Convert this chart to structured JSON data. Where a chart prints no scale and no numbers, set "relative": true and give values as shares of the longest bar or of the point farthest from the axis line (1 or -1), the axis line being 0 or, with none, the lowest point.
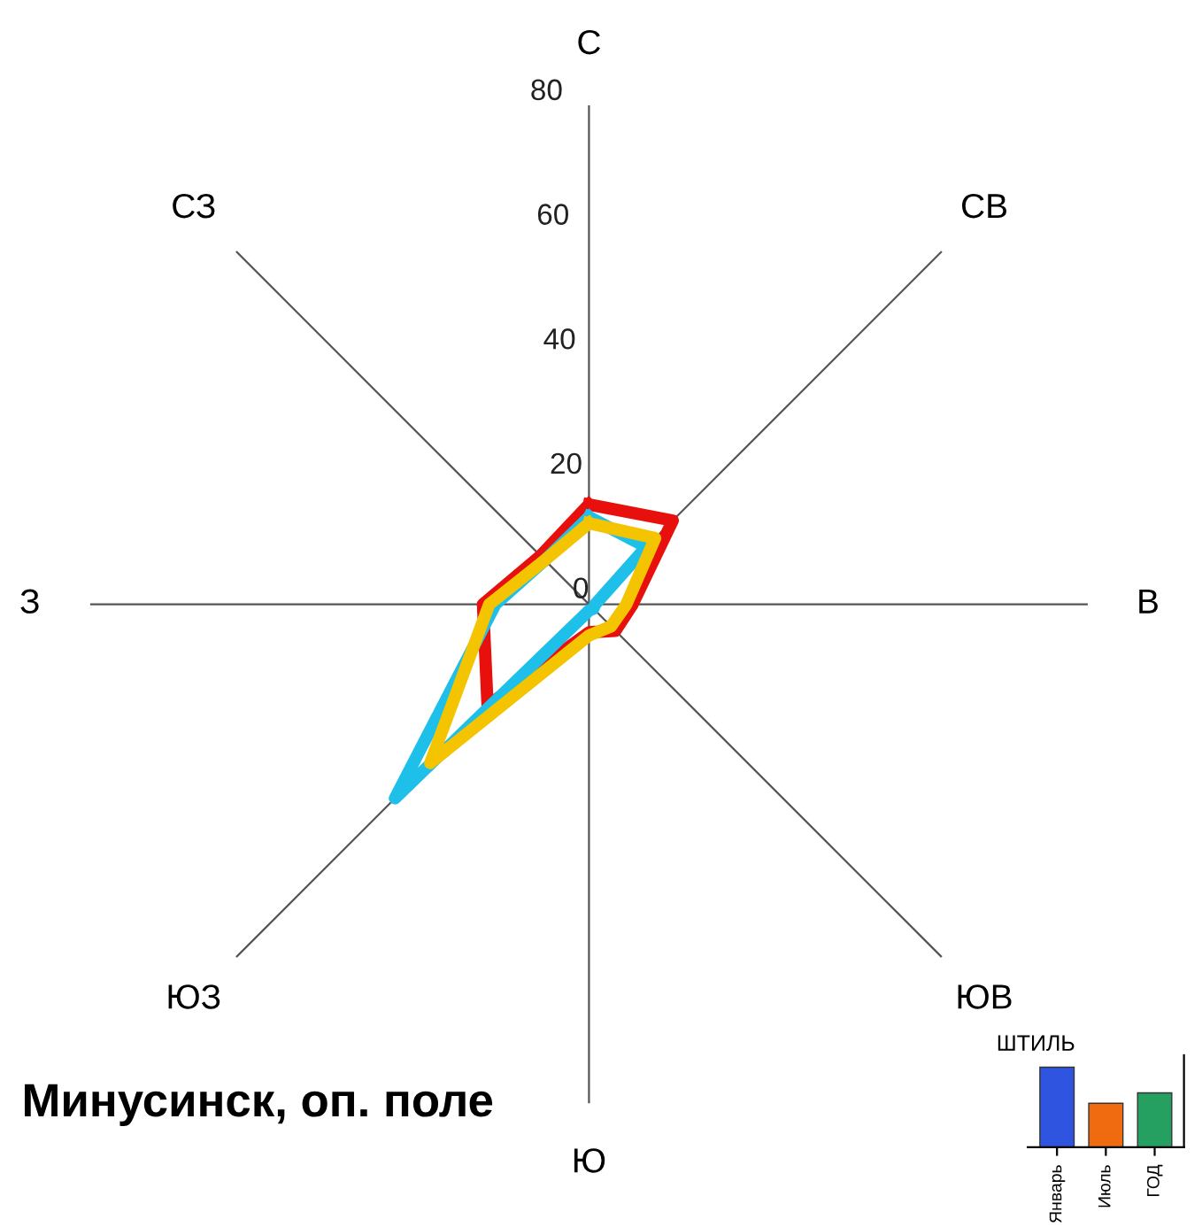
{
  "chart_data": [
    {
      "type": "radar",
      "title": "Минусинск, оп. поле",
      "categories": [
        "С",
        "СВ",
        "В",
        "ЮВ",
        "Ю",
        "ЮЗ",
        "З",
        "СЗ"
      ],
      "ylim": [
        0,
        80
      ],
      "yticks": [
        0,
        20,
        40,
        60,
        80
      ],
      "marker": "none",
      "series": [
        {
          "color": "#e8100c",
          "values": [
            16,
            19,
            7,
            6,
            4.5,
            23,
            17,
            11
          ]
        },
        {
          "color": "#1ec0ea",
          "values": [
            14,
            13,
            1,
            1,
            1,
            44,
            15,
            10
          ]
        },
        {
          "color": "#f5c400",
          "values": [
            13,
            15,
            6,
            5,
            5,
            36,
            16,
            10
          ]
        }
      ]
    },
    {
      "type": "bar",
      "relative": true,
      "title": "ШТИЛЬ",
      "categories": [
        "Январь",
        "Июль",
        "ГОД"
      ],
      "colors": [
        "#2f55e0",
        "#f06a10",
        "#25a060"
      ],
      "values": [
        1,
        0.55,
        0.68
      ]
    }
  ]
}
